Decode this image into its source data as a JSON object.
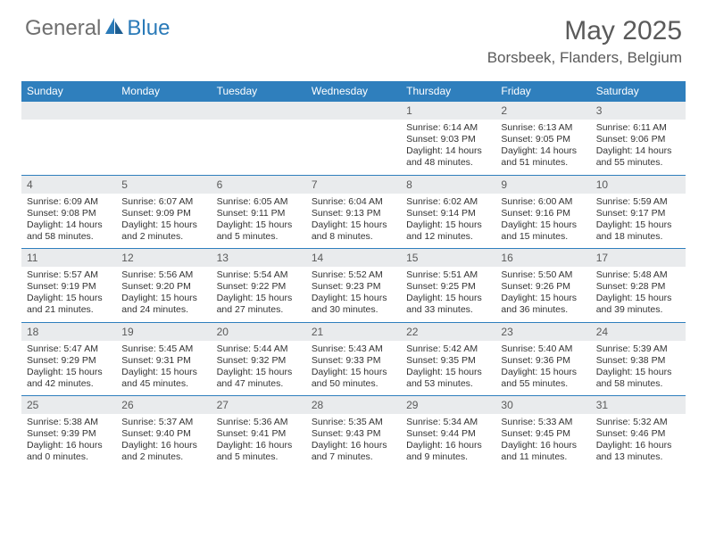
{
  "logo": {
    "general": "General",
    "blue": "Blue"
  },
  "title": "May 2025",
  "location": "Borsbeek, Flanders, Belgium",
  "colors": {
    "header_bg": "#2f7fbd",
    "header_text": "#ffffff",
    "daynum_bg": "#e9ebed",
    "border": "#2f7fbd",
    "body_text": "#333333",
    "title_text": "#5a5a5a",
    "logo_gray": "#6f6f6f",
    "logo_blue": "#2a7ab8"
  },
  "dayLabels": [
    "Sunday",
    "Monday",
    "Tuesday",
    "Wednesday",
    "Thursday",
    "Friday",
    "Saturday"
  ],
  "weeks": [
    {
      "nums": [
        "",
        "",
        "",
        "",
        "1",
        "2",
        "3"
      ],
      "details": [
        null,
        null,
        null,
        null,
        {
          "sunrise": "6:14 AM",
          "sunset": "9:03 PM",
          "daylight": "14 hours and 48 minutes."
        },
        {
          "sunrise": "6:13 AM",
          "sunset": "9:05 PM",
          "daylight": "14 hours and 51 minutes."
        },
        {
          "sunrise": "6:11 AM",
          "sunset": "9:06 PM",
          "daylight": "14 hours and 55 minutes."
        }
      ]
    },
    {
      "nums": [
        "4",
        "5",
        "6",
        "7",
        "8",
        "9",
        "10"
      ],
      "details": [
        {
          "sunrise": "6:09 AM",
          "sunset": "9:08 PM",
          "daylight": "14 hours and 58 minutes."
        },
        {
          "sunrise": "6:07 AM",
          "sunset": "9:09 PM",
          "daylight": "15 hours and 2 minutes."
        },
        {
          "sunrise": "6:05 AM",
          "sunset": "9:11 PM",
          "daylight": "15 hours and 5 minutes."
        },
        {
          "sunrise": "6:04 AM",
          "sunset": "9:13 PM",
          "daylight": "15 hours and 8 minutes."
        },
        {
          "sunrise": "6:02 AM",
          "sunset": "9:14 PM",
          "daylight": "15 hours and 12 minutes."
        },
        {
          "sunrise": "6:00 AM",
          "sunset": "9:16 PM",
          "daylight": "15 hours and 15 minutes."
        },
        {
          "sunrise": "5:59 AM",
          "sunset": "9:17 PM",
          "daylight": "15 hours and 18 minutes."
        }
      ]
    },
    {
      "nums": [
        "11",
        "12",
        "13",
        "14",
        "15",
        "16",
        "17"
      ],
      "details": [
        {
          "sunrise": "5:57 AM",
          "sunset": "9:19 PM",
          "daylight": "15 hours and 21 minutes."
        },
        {
          "sunrise": "5:56 AM",
          "sunset": "9:20 PM",
          "daylight": "15 hours and 24 minutes."
        },
        {
          "sunrise": "5:54 AM",
          "sunset": "9:22 PM",
          "daylight": "15 hours and 27 minutes."
        },
        {
          "sunrise": "5:52 AM",
          "sunset": "9:23 PM",
          "daylight": "15 hours and 30 minutes."
        },
        {
          "sunrise": "5:51 AM",
          "sunset": "9:25 PM",
          "daylight": "15 hours and 33 minutes."
        },
        {
          "sunrise": "5:50 AM",
          "sunset": "9:26 PM",
          "daylight": "15 hours and 36 minutes."
        },
        {
          "sunrise": "5:48 AM",
          "sunset": "9:28 PM",
          "daylight": "15 hours and 39 minutes."
        }
      ]
    },
    {
      "nums": [
        "18",
        "19",
        "20",
        "21",
        "22",
        "23",
        "24"
      ],
      "details": [
        {
          "sunrise": "5:47 AM",
          "sunset": "9:29 PM",
          "daylight": "15 hours and 42 minutes."
        },
        {
          "sunrise": "5:45 AM",
          "sunset": "9:31 PM",
          "daylight": "15 hours and 45 minutes."
        },
        {
          "sunrise": "5:44 AM",
          "sunset": "9:32 PM",
          "daylight": "15 hours and 47 minutes."
        },
        {
          "sunrise": "5:43 AM",
          "sunset": "9:33 PM",
          "daylight": "15 hours and 50 minutes."
        },
        {
          "sunrise": "5:42 AM",
          "sunset": "9:35 PM",
          "daylight": "15 hours and 53 minutes."
        },
        {
          "sunrise": "5:40 AM",
          "sunset": "9:36 PM",
          "daylight": "15 hours and 55 minutes."
        },
        {
          "sunrise": "5:39 AM",
          "sunset": "9:38 PM",
          "daylight": "15 hours and 58 minutes."
        }
      ]
    },
    {
      "nums": [
        "25",
        "26",
        "27",
        "28",
        "29",
        "30",
        "31"
      ],
      "details": [
        {
          "sunrise": "5:38 AM",
          "sunset": "9:39 PM",
          "daylight": "16 hours and 0 minutes."
        },
        {
          "sunrise": "5:37 AM",
          "sunset": "9:40 PM",
          "daylight": "16 hours and 2 minutes."
        },
        {
          "sunrise": "5:36 AM",
          "sunset": "9:41 PM",
          "daylight": "16 hours and 5 minutes."
        },
        {
          "sunrise": "5:35 AM",
          "sunset": "9:43 PM",
          "daylight": "16 hours and 7 minutes."
        },
        {
          "sunrise": "5:34 AM",
          "sunset": "9:44 PM",
          "daylight": "16 hours and 9 minutes."
        },
        {
          "sunrise": "5:33 AM",
          "sunset": "9:45 PM",
          "daylight": "16 hours and 11 minutes."
        },
        {
          "sunrise": "5:32 AM",
          "sunset": "9:46 PM",
          "daylight": "16 hours and 13 minutes."
        }
      ]
    }
  ],
  "labels": {
    "sunrise": "Sunrise:",
    "sunset": "Sunset:",
    "daylight": "Daylight:"
  }
}
